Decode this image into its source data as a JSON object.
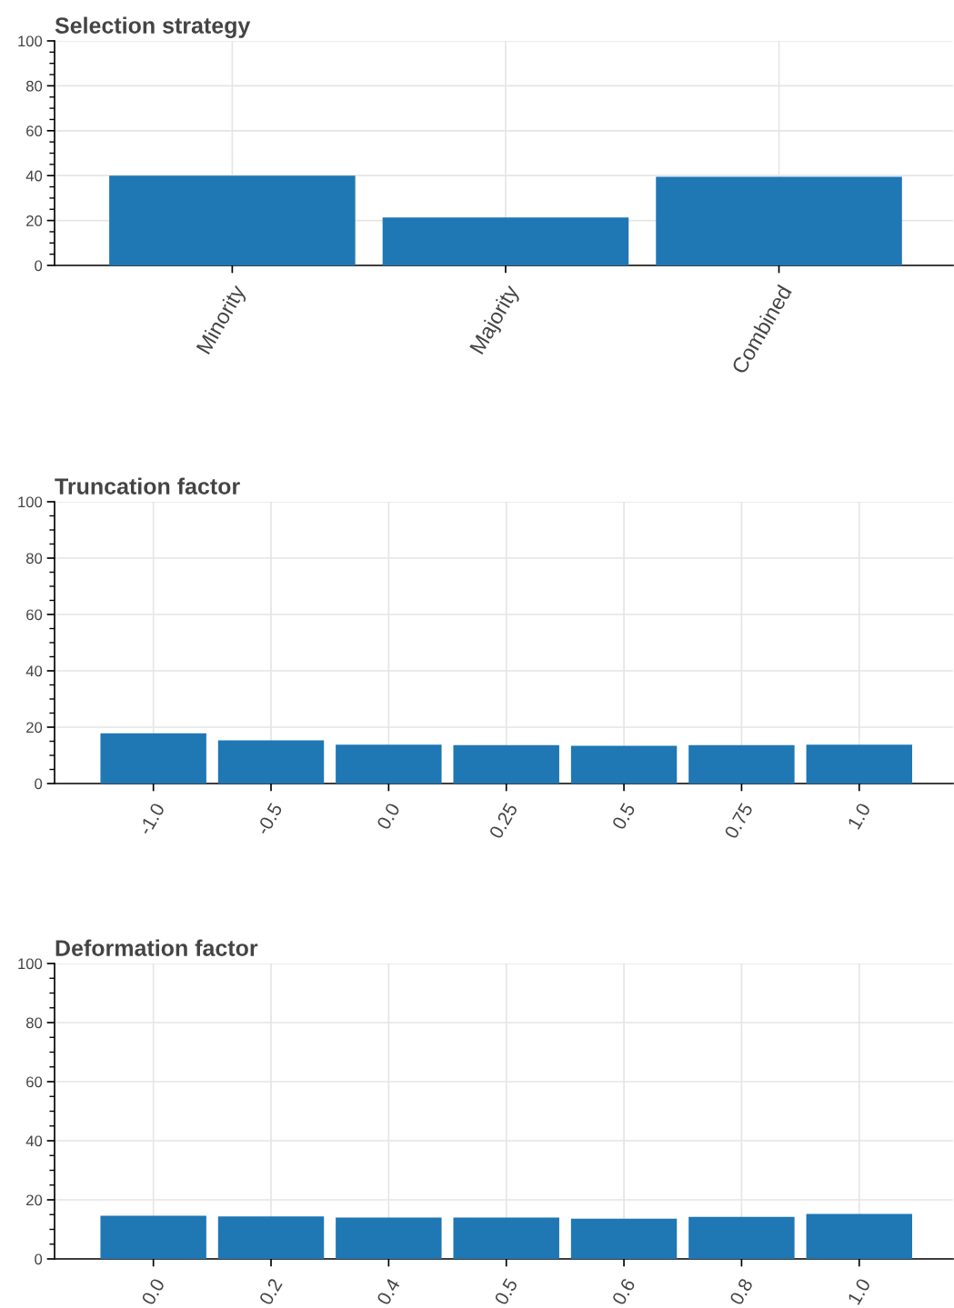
{
  "chart_data": [
    {
      "type": "bar",
      "title": "Selection strategy",
      "categories": [
        "Minority",
        "Majority",
        "Combined"
      ],
      "values": [
        40.0,
        21.4,
        39.5
      ],
      "color": "#1f77b4",
      "ylim": [
        0,
        100
      ],
      "yticks": [
        0,
        20,
        40,
        60,
        80,
        100
      ],
      "grid": true
    },
    {
      "type": "bar",
      "title": "Truncation factor",
      "categories": [
        "-1.0",
        "-0.5",
        "0.0",
        "0.25",
        "0.5",
        "0.75",
        "1.0"
      ],
      "values": [
        17.8,
        15.3,
        13.8,
        13.6,
        13.4,
        13.6,
        13.8
      ],
      "color": "#1f77b4",
      "ylim": [
        0,
        100
      ],
      "yticks": [
        0,
        20,
        40,
        60,
        80,
        100
      ],
      "grid": true
    },
    {
      "type": "bar",
      "title": "Deformation factor",
      "categories": [
        "0.0",
        "0.2",
        "0.4",
        "0.5",
        "0.6",
        "0.8",
        "1.0"
      ],
      "values": [
        14.6,
        14.4,
        14.0,
        14.0,
        13.6,
        14.2,
        15.2
      ],
      "color": "#1f77b4",
      "ylim": [
        0,
        100
      ],
      "yticks": [
        0,
        20,
        40,
        60,
        80,
        100
      ],
      "grid": true
    }
  ]
}
